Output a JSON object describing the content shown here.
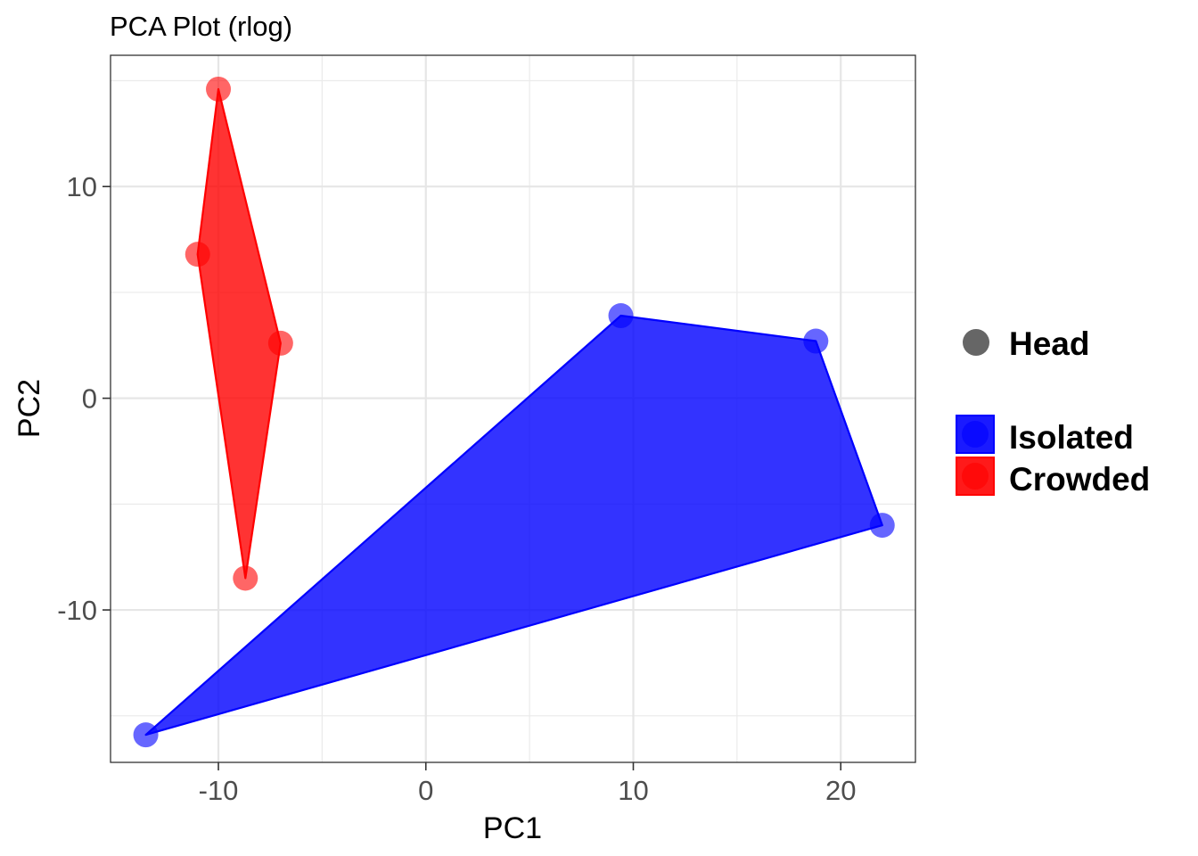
{
  "chart_data": {
    "type": "scatter",
    "title": "PCA Plot (rlog)",
    "xlabel": "PC1",
    "ylabel": "PC2",
    "xlim": [
      -15.2,
      23.6
    ],
    "ylim": [
      -17.2,
      16.2
    ],
    "x_ticks": [
      -10,
      0,
      10,
      20
    ],
    "y_ticks": [
      -10,
      0,
      10
    ],
    "x_minor_ticks": [
      -5,
      5,
      15
    ],
    "y_minor_ticks": [
      -15,
      -5,
      5,
      15
    ],
    "x_tick_labels": [
      "-10",
      "0",
      "10",
      "20"
    ],
    "y_tick_labels": [
      "-10",
      "0",
      "10"
    ],
    "grid": true,
    "legend_position": "right",
    "shape_legend": {
      "label": "Head",
      "color": "#666666"
    },
    "series": [
      {
        "name": "Isolated",
        "color": "#0000ff",
        "points": [
          {
            "x": -13.5,
            "y": -15.9
          },
          {
            "x": 9.4,
            "y": 3.9
          },
          {
            "x": 18.8,
            "y": 2.7
          },
          {
            "x": 22.0,
            "y": -6.0
          }
        ],
        "hull": [
          [
            -13.5,
            -15.9
          ],
          [
            9.4,
            3.9
          ],
          [
            18.8,
            2.7
          ],
          [
            22.0,
            -6.0
          ]
        ]
      },
      {
        "name": "Crowded",
        "color": "#ff0000",
        "points": [
          {
            "x": -10.0,
            "y": 14.6
          },
          {
            "x": -11.0,
            "y": 6.8
          },
          {
            "x": -7.0,
            "y": 2.6
          },
          {
            "x": -8.7,
            "y": -8.5
          }
        ],
        "hull": [
          [
            -10.0,
            14.6
          ],
          [
            -11.0,
            6.8
          ],
          [
            -8.7,
            -8.5
          ],
          [
            -7.0,
            2.6
          ]
        ]
      }
    ]
  }
}
